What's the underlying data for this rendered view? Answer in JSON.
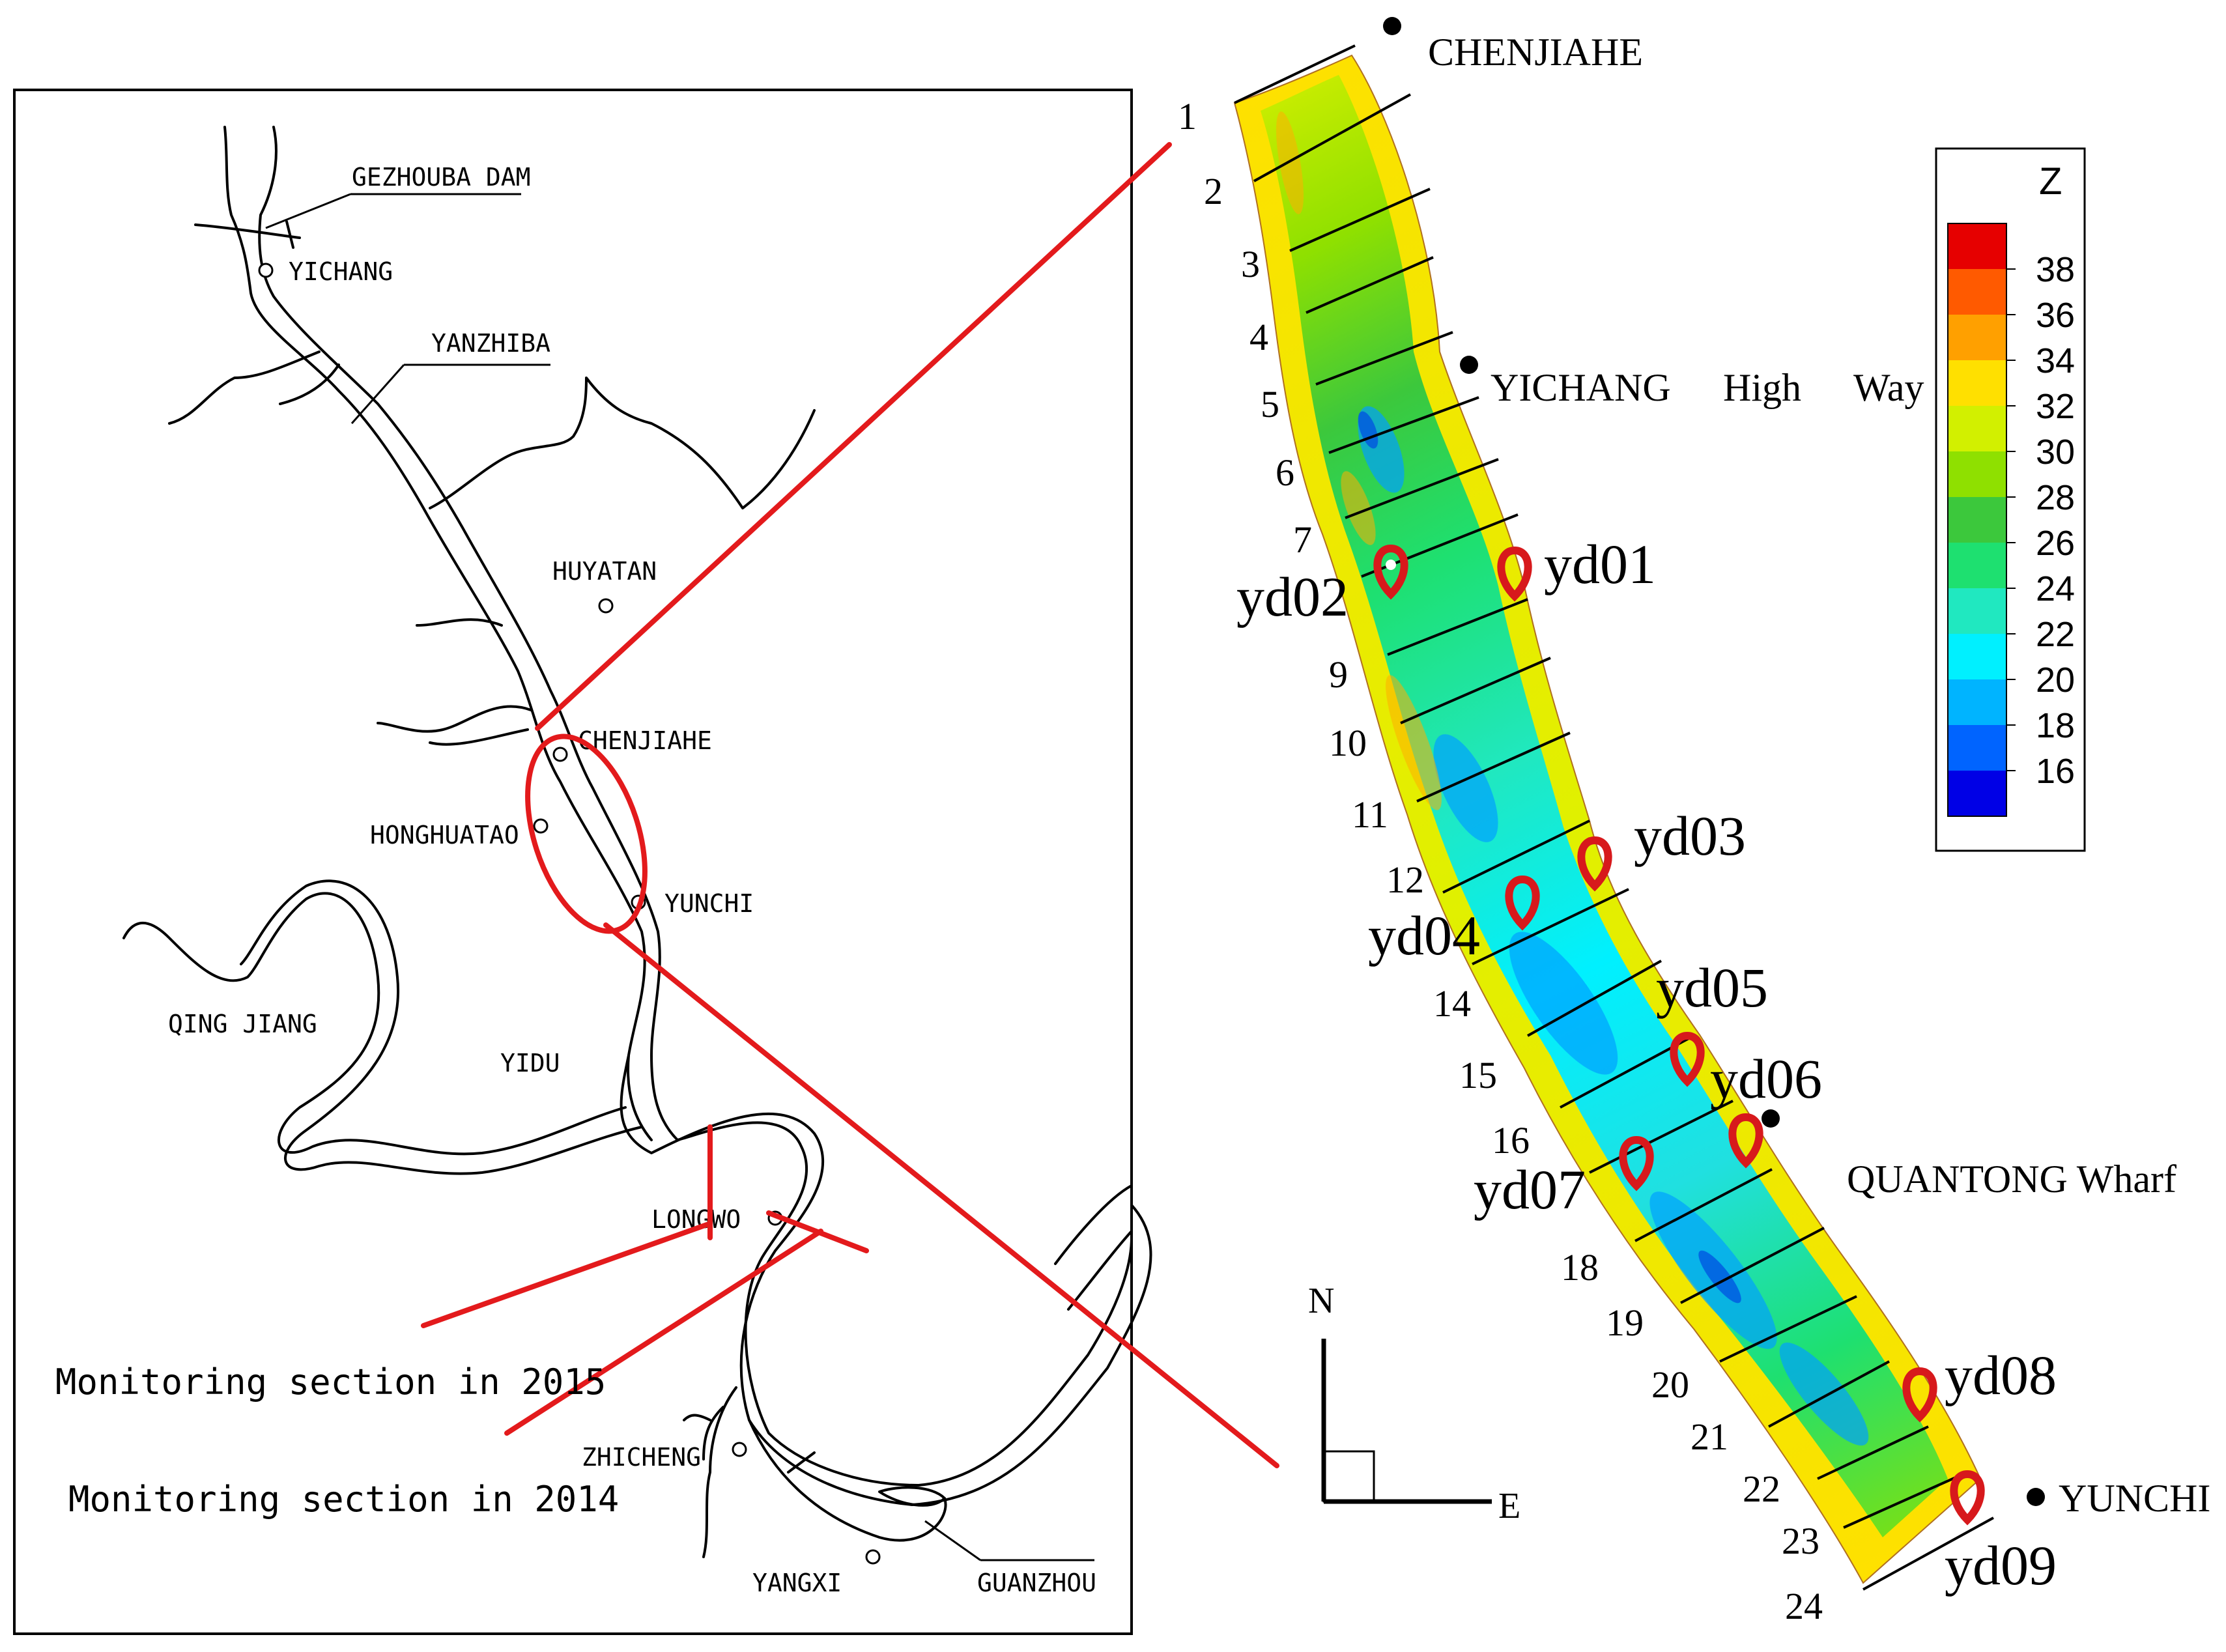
{
  "overview_map": {
    "place_labels": [
      "GEZHOUBA DAM",
      "YICHANG",
      "YANZHIBA",
      "HUYATAN",
      "CHENJIAHE",
      "HONGHUATAO",
      "YUNCHI",
      "QING JIANG",
      "YIDU",
      "LONGWO",
      "ZHICHENG",
      "YANGXI",
      "GUANZHOU"
    ],
    "legend": {
      "section_2015": "Monitoring section in 2015",
      "section_2014": "Monitoring section in 2014"
    }
  },
  "detail_map": {
    "place_labels": {
      "chenjiahe": "CHENJIAHE",
      "yichang_highway": [
        "YICHANG",
        "High",
        "Way"
      ],
      "quantong": "QUANTONG Wharf",
      "yunchi": "YUNCHI"
    },
    "section_numbers": [
      "1",
      "2",
      "3",
      "4",
      "5",
      "6",
      "7",
      "9",
      "10",
      "11",
      "12",
      "14",
      "15",
      "16",
      "18",
      "19",
      "20",
      "21",
      "22",
      "23",
      "24"
    ],
    "stations": [
      "yd01",
      "yd02",
      "yd03",
      "yd04",
      "yd05",
      "yd06",
      "yd07",
      "yd08",
      "yd09"
    ],
    "compass": {
      "north": "N",
      "east": "E"
    },
    "colorbar": {
      "title": "Z",
      "ticks": [
        "38",
        "36",
        "34",
        "32",
        "30",
        "28",
        "26",
        "24",
        "22",
        "20",
        "18",
        "16"
      ],
      "colors": [
        "#e60000",
        "#ff5a00",
        "#ffa000",
        "#ffe000",
        "#d2f000",
        "#8fe000",
        "#3cc83c",
        "#1ee070",
        "#20e8c0",
        "#00f0ff",
        "#00b4ff",
        "#0064ff",
        "#0000e6"
      ]
    }
  },
  "colors": {
    "leader_lines": "#e31a1c",
    "marker": "#d7191c",
    "river_outline": "#000000"
  }
}
